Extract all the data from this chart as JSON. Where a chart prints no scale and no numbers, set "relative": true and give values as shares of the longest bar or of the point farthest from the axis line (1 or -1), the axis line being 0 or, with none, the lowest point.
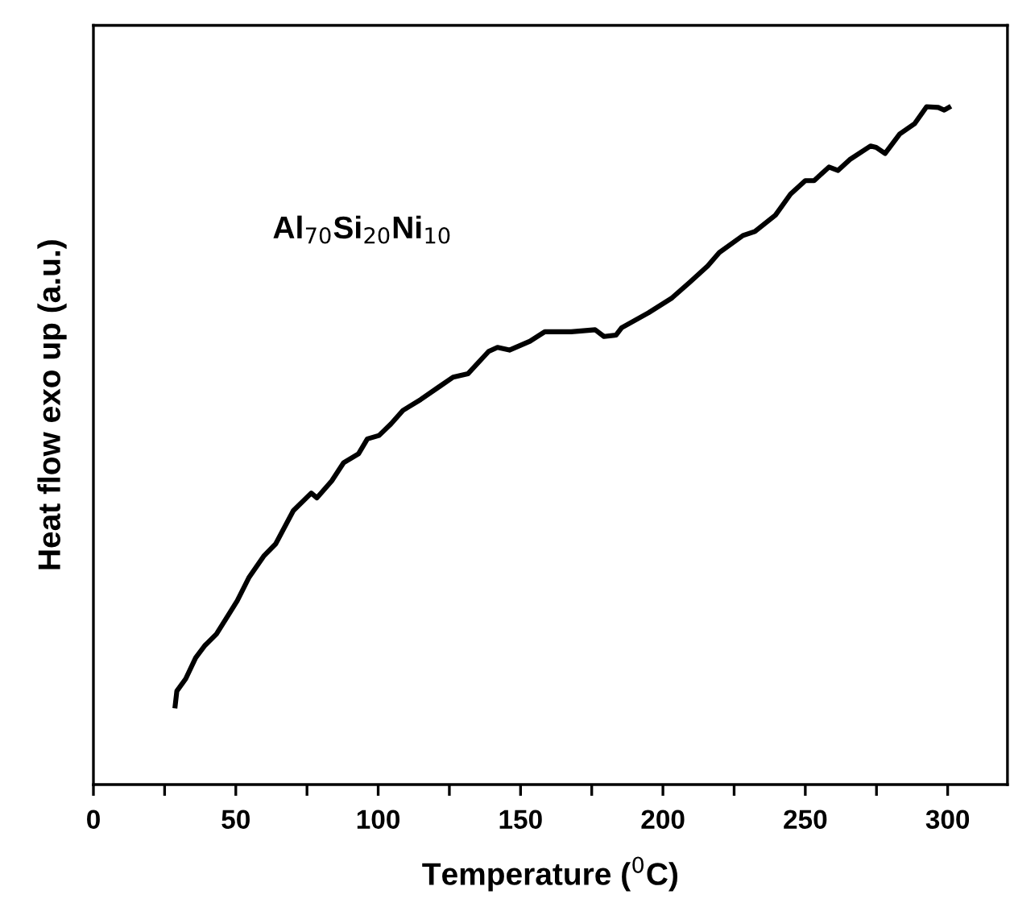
{
  "chart_data": {
    "type": "line",
    "relative": true,
    "xlabel": "Temperature ($^{0}$C)",
    "ylabel": "Heat flow exo up (a.u.)",
    "annotations": [
      "Al$_{70}$Si$_{20}$Ni$_{10}$"
    ],
    "xlim": [
      0,
      321
    ],
    "xticks": [
      0,
      {
        "value": 25,
        "label": null
      },
      50,
      {
        "value": 75,
        "label": null
      },
      100,
      {
        "value": 125,
        "label": null
      },
      150,
      {
        "value": 175,
        "label": null
      },
      200,
      {
        "value": 225,
        "label": null
      },
      250,
      {
        "value": 275,
        "label": null
      },
      300
    ],
    "tick_labels": "x",
    "grid": false,
    "legend": false,
    "marker": "none",
    "line_style": "solid",
    "series": [
      {
        "color": "#000000",
        "x": [
          28.7,
          29.3,
          32.4,
          35.9,
          39.1,
          43.2,
          50.5,
          54.7,
          59.8,
          64.0,
          70.2,
          76.5,
          78.5,
          83.7,
          87.9,
          93.1,
          96.2,
          100.3,
          104.5,
          108.7,
          114.9,
          121.1,
          126.3,
          131.5,
          138.8,
          141.9,
          146.1,
          153.3,
          158.5,
          167.8,
          176.2,
          179.3,
          183.5,
          185.5,
          194.9,
          203.2,
          209.4,
          215.7,
          219.8,
          228.1,
          232.3,
          239.5,
          244.8,
          250.0,
          253.1,
          258.3,
          261.5,
          265.6,
          272.9,
          274.9,
          278.0,
          283.2,
          288.4,
          292.6,
          296.7,
          298.8,
          300.4
        ],
        "values": [
          0.116,
          0.138,
          0.156,
          0.187,
          0.205,
          0.222,
          0.271,
          0.306,
          0.337,
          0.355,
          0.404,
          0.43,
          0.423,
          0.448,
          0.475,
          0.488,
          0.51,
          0.515,
          0.532,
          0.552,
          0.568,
          0.586,
          0.601,
          0.606,
          0.639,
          0.645,
          0.641,
          0.654,
          0.668,
          0.668,
          0.671,
          0.661,
          0.663,
          0.674,
          0.696,
          0.718,
          0.741,
          0.765,
          0.785,
          0.81,
          0.816,
          0.84,
          0.871,
          0.891,
          0.891,
          0.911,
          0.906,
          0.922,
          0.942,
          0.94,
          0.931,
          0.96,
          0.975,
          1.0,
          0.999,
          0.995,
          0.999
        ]
      }
    ]
  }
}
